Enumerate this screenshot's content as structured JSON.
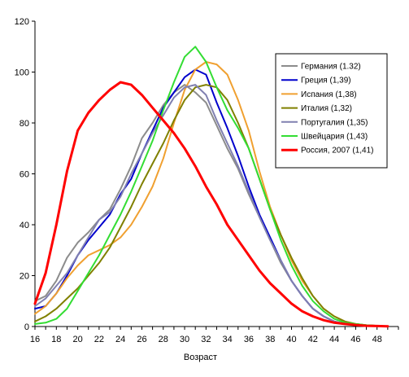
{
  "chart_data": {
    "type": "line",
    "xlabel": "Возраст",
    "ylabel": "",
    "xlim": [
      16,
      50
    ],
    "ylim": [
      0,
      120
    ],
    "x_ticks": [
      16,
      18,
      20,
      22,
      24,
      26,
      28,
      30,
      32,
      34,
      36,
      38,
      40,
      42,
      44,
      46,
      48
    ],
    "y_ticks": [
      0,
      20,
      40,
      60,
      80,
      100,
      120
    ],
    "grid": false,
    "legend_position": "right",
    "x": [
      16,
      17,
      18,
      19,
      20,
      21,
      22,
      23,
      24,
      25,
      26,
      27,
      28,
      29,
      30,
      31,
      32,
      33,
      34,
      35,
      36,
      37,
      38,
      39,
      40,
      41,
      42,
      43,
      44,
      45,
      46,
      47,
      48,
      49
    ],
    "series": [
      {
        "name": "Германия (1.32)",
        "color": "#8c8c8c",
        "width": 2,
        "values": [
          10,
          12,
          18,
          27,
          33,
          37,
          42,
          46,
          54,
          63,
          74,
          80,
          87,
          92,
          95,
          92,
          88,
          79,
          70,
          62,
          52,
          43,
          34,
          25,
          18,
          12,
          7,
          4,
          2,
          1,
          0.5,
          0.3,
          0.2,
          0.1
        ]
      },
      {
        "name": "Греция (1,39)",
        "color": "#0000cc",
        "width": 2,
        "values": [
          7,
          8,
          13,
          20,
          28,
          34,
          39,
          44,
          52,
          58,
          68,
          77,
          86,
          92,
          98,
          101,
          99,
          88,
          78,
          67,
          55,
          44,
          35,
          26,
          18,
          12,
          7,
          4,
          2,
          1,
          0.5,
          0.3,
          0.2,
          0.1
        ]
      },
      {
        "name": "Испания (1,38)",
        "color": "#f0a030",
        "width": 2,
        "values": [
          5,
          8,
          13,
          19,
          24,
          28,
          30,
          32,
          35,
          40,
          47,
          55,
          66,
          80,
          93,
          101,
          104,
          103,
          99,
          89,
          77,
          61,
          47,
          36,
          26,
          18,
          12,
          7,
          4,
          2,
          1,
          0.5,
          0.3,
          0.1
        ]
      },
      {
        "name": "Италия (1,32)",
        "color": "#808000",
        "width": 2,
        "values": [
          2,
          4,
          7,
          11,
          15,
          20,
          25,
          31,
          39,
          47,
          56,
          64,
          72,
          81,
          89,
          94,
          95,
          94,
          89,
          80,
          70,
          58,
          46,
          36,
          27,
          19,
          12,
          7,
          4,
          2,
          1,
          0.5,
          0.3,
          0.1
        ]
      },
      {
        "name": "Португалия (1,35)",
        "color": "#8080b0",
        "width": 2,
        "values": [
          8,
          11,
          16,
          21,
          28,
          35,
          42,
          45,
          51,
          60,
          68,
          76,
          83,
          90,
          94,
          95,
          91,
          81,
          72,
          63,
          53,
          43,
          34,
          26,
          18,
          12,
          7,
          4,
          2,
          1,
          0.5,
          0.3,
          0.2,
          0.1
        ]
      },
      {
        "name": "Швейцария (1,43)",
        "color": "#33dd33",
        "width": 2,
        "values": [
          1,
          1.5,
          3,
          7,
          14,
          21,
          28,
          36,
          44,
          53,
          63,
          73,
          85,
          96,
          106,
          110,
          104,
          94,
          85,
          78,
          70,
          58,
          46,
          34,
          24,
          16,
          10,
          6,
          3,
          1.5,
          1,
          0.5,
          0.3,
          0.1
        ]
      },
      {
        "name": "Россия, 2007 (1,41)",
        "color": "#ff0000",
        "width": 3,
        "values": [
          9,
          21,
          40,
          61,
          77,
          84,
          89,
          93,
          96,
          95,
          91,
          86,
          81,
          76,
          70,
          63,
          55,
          48,
          40,
          34,
          28,
          22,
          17,
          13,
          9,
          6,
          4,
          2.5,
          1.5,
          1,
          0.6,
          0.3,
          0.2,
          0.1
        ]
      }
    ]
  }
}
